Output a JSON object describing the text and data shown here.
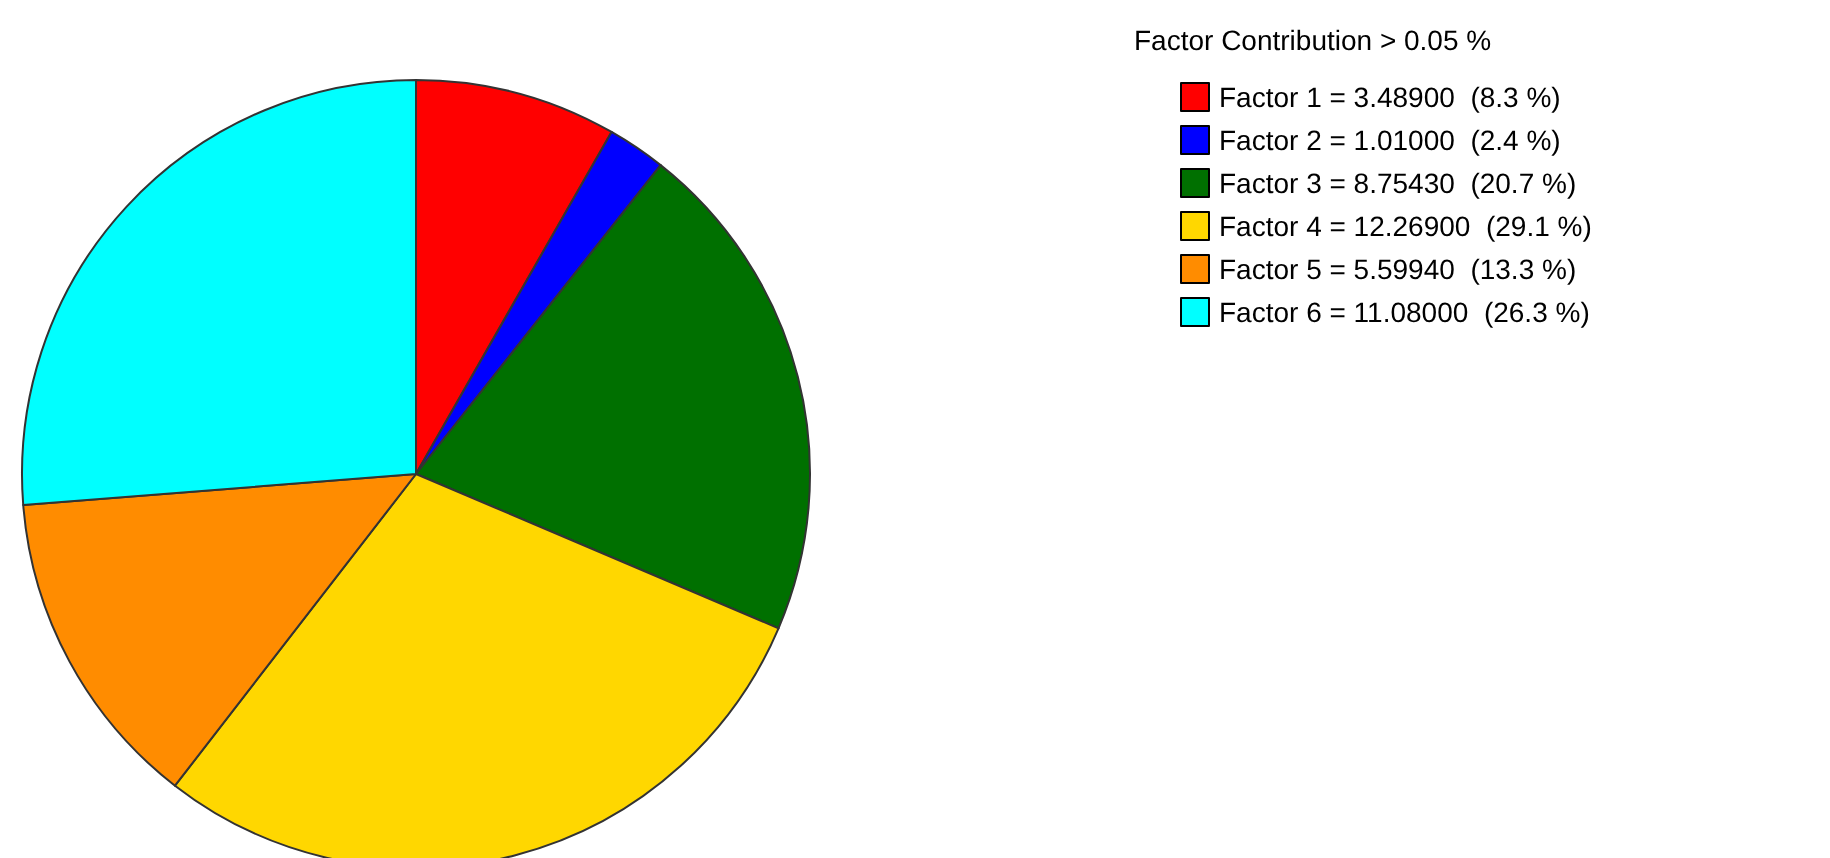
{
  "chart_data": {
    "type": "pie",
    "legend_title": "Factor Contribution > 0.05 %",
    "categories": [
      "Factor 1",
      "Factor 2",
      "Factor 3",
      "Factor 4",
      "Factor 5",
      "Factor 6"
    ],
    "values": [
      3.489,
      1.01,
      8.7543,
      12.269,
      5.5994,
      11.08
    ],
    "value_labels": [
      "= 3.48900  (8.3 %)",
      "= 1.01000  (2.4 %)",
      "= 8.75430  (20.7 %)",
      "= 12.26900  (29.1 %)",
      "= 5.59940  (13.3 %)",
      "= 11.08000  (26.3 %)"
    ],
    "colors": [
      "#ff0000",
      "#0000ff",
      "#007000",
      "#ffd700",
      "#ff8c00",
      "#00ffff"
    ],
    "legend": "top right"
  }
}
